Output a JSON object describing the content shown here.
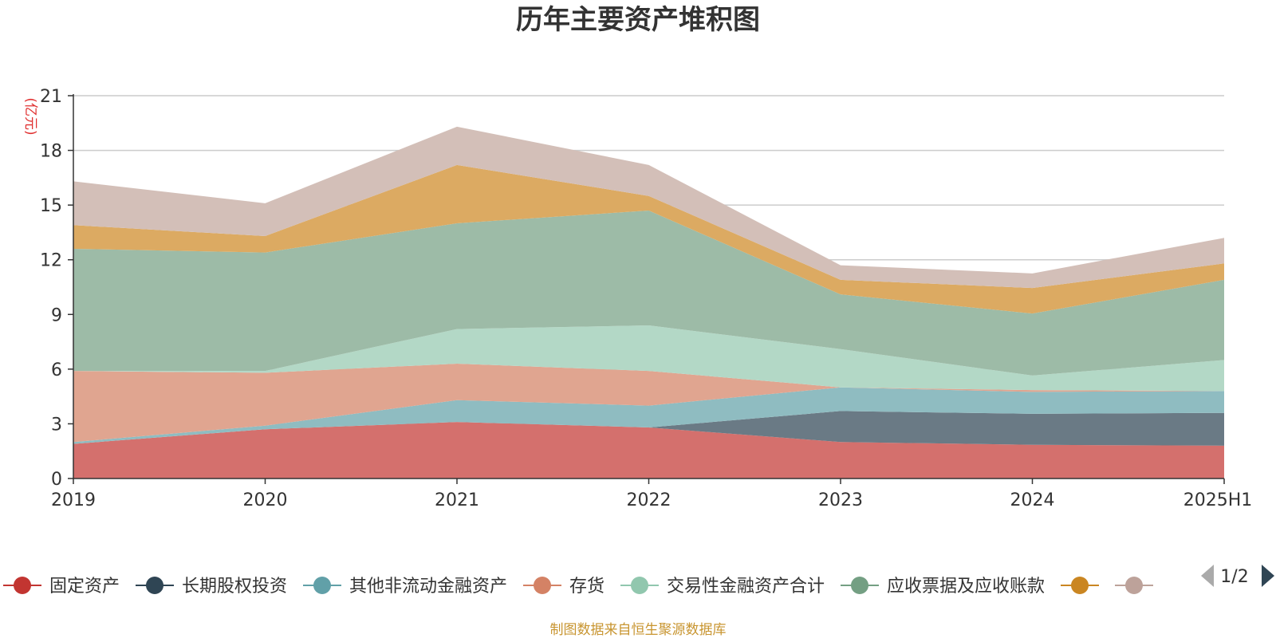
{
  "chart_data": {
    "type": "area",
    "stacked": true,
    "title": "历年主要资产堆积图",
    "unit_label": "(亿元)",
    "x": [
      "2019",
      "2020",
      "2021",
      "2022",
      "2023",
      "2024",
      "2025H1"
    ],
    "ylim": [
      0,
      21
    ],
    "yticks": [
      "0",
      "3",
      "6",
      "9",
      "12",
      "15",
      "18",
      "21"
    ],
    "grid": true,
    "legend_position": "bottom",
    "series": [
      {
        "name": "固定资产",
        "color": "#d4706d",
        "legend_color": "#c23531",
        "values": [
          1.9,
          2.7,
          3.1,
          2.8,
          2.0,
          1.85,
          1.8
        ]
      },
      {
        "name": "长期股权投资",
        "color": "#6a7a85",
        "legend_color": "#2f4554",
        "values": [
          0.0,
          0.0,
          0.0,
          0.0,
          1.7,
          1.7,
          1.8
        ]
      },
      {
        "name": "其他非流动金融资产",
        "color": "#8fbcc1",
        "legend_color": "#61a0a8",
        "values": [
          0.1,
          0.2,
          1.2,
          1.2,
          1.3,
          1.2,
          1.2
        ]
      },
      {
        "name": "存货",
        "color": "#e0a590",
        "legend_color": "#d48265",
        "values": [
          3.9,
          2.9,
          2.0,
          1.9,
          0.0,
          0.1,
          0.0
        ]
      },
      {
        "name": "交易性金融资产合计",
        "color": "#b3d8c6",
        "legend_color": "#91c7ae",
        "values": [
          0.0,
          0.1,
          1.9,
          2.5,
          2.1,
          0.8,
          1.7
        ]
      },
      {
        "name": "应收票据及应收账款",
        "color": "#9dbba7",
        "legend_color": "#749f83",
        "values": [
          6.7,
          6.5,
          5.8,
          6.3,
          3.0,
          3.4,
          4.4
        ]
      },
      {
        "name": "",
        "color": "#dcaa62",
        "legend_color": "#ca8622",
        "values": [
          1.3,
          0.9,
          3.2,
          0.8,
          0.8,
          1.4,
          0.9
        ]
      },
      {
        "name": "",
        "color": "#d3bfb8",
        "legend_color": "#bda29a",
        "values": [
          2.4,
          1.8,
          2.1,
          1.7,
          0.8,
          0.8,
          1.4
        ]
      }
    ]
  },
  "legend": {
    "page_indicator": "1/2"
  },
  "footer": {
    "source": "制图数据来自恒生聚源数据库"
  }
}
